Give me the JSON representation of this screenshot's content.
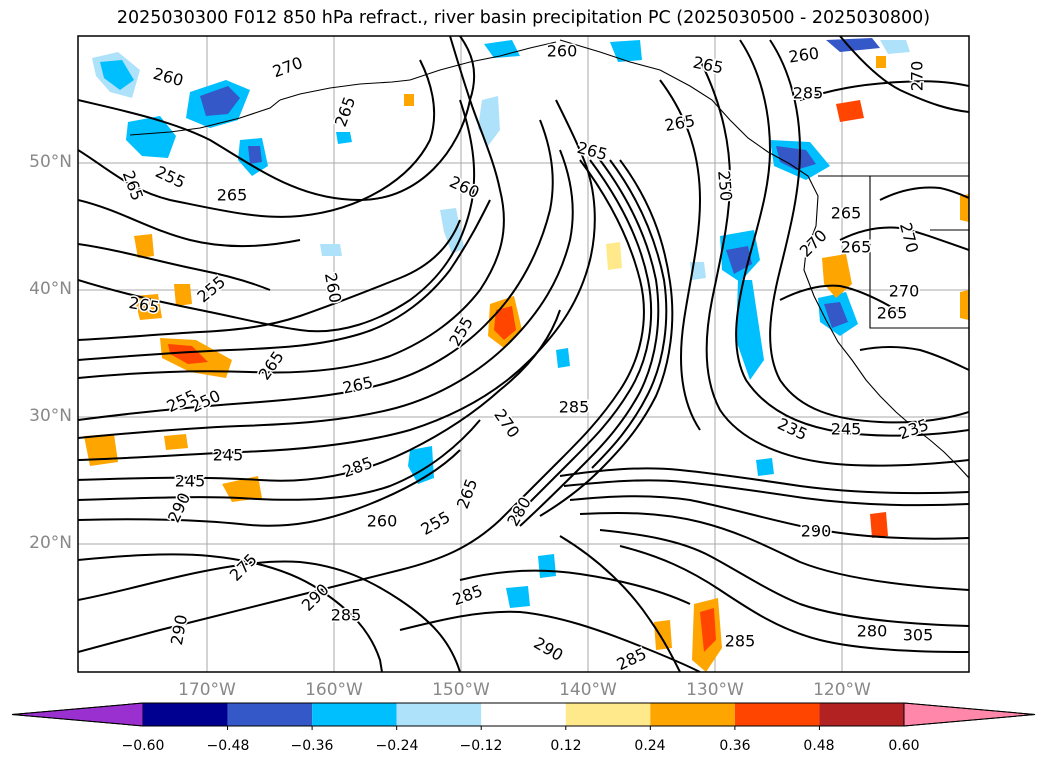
{
  "title": "2025030300 F012 850 hPa refract., river basin precipitation PC (2025030500 - 2025030800)",
  "lat_labels": [
    "50°N",
    "40°N",
    "30°N",
    "20°N"
  ],
  "lon_labels": [
    "170°W",
    "160°W",
    "150°W",
    "140°W",
    "130°W",
    "120°W"
  ],
  "colorbar": {
    "extend": "both",
    "under_color": "#9b30d0",
    "over_color": "#ff88aa",
    "colors": [
      "#9b30d0",
      "#000090",
      "#3558c8",
      "#00bfff",
      "#aee2fa",
      "#ffffff",
      "#ffe98a",
      "#ffa500",
      "#ff4500",
      "#b22222",
      "#ff88aa"
    ],
    "tick_labels": [
      "−0.60",
      "−0.48",
      "−0.36",
      "−0.24",
      "−0.12",
      "0.12",
      "0.24",
      "0.36",
      "0.48",
      "0.60"
    ]
  },
  "contour_labels": [
    {
      "text": "260"
    },
    {
      "text": "270"
    },
    {
      "text": "265"
    },
    {
      "text": "265"
    },
    {
      "text": "260"
    },
    {
      "text": "265"
    },
    {
      "text": "260"
    },
    {
      "text": "255"
    },
    {
      "text": "265"
    },
    {
      "text": "265"
    },
    {
      "text": "260"
    },
    {
      "text": "265"
    },
    {
      "text": "260"
    },
    {
      "text": "255"
    },
    {
      "text": "265"
    },
    {
      "text": "265"
    },
    {
      "text": "255"
    },
    {
      "text": "250"
    },
    {
      "text": "245"
    },
    {
      "text": "245"
    },
    {
      "text": "270"
    },
    {
      "text": "285"
    },
    {
      "text": "285"
    },
    {
      "text": "265"
    },
    {
      "text": "290"
    },
    {
      "text": "260"
    },
    {
      "text": "255"
    },
    {
      "text": "280"
    },
    {
      "text": "285"
    },
    {
      "text": "270"
    },
    {
      "text": "285"
    },
    {
      "text": "275"
    },
    {
      "text": "290"
    },
    {
      "text": "285"
    },
    {
      "text": "290"
    },
    {
      "text": "285"
    },
    {
      "text": "290"
    },
    {
      "text": "290"
    },
    {
      "text": "235"
    },
    {
      "text": "245"
    },
    {
      "text": "235"
    },
    {
      "text": "285"
    },
    {
      "text": "280"
    },
    {
      "text": "305"
    },
    {
      "text": "250"
    },
    {
      "text": "270"
    },
    {
      "text": "265"
    },
    {
      "text": "265"
    },
    {
      "text": "270"
    },
    {
      "text": "270"
    },
    {
      "text": "265"
    },
    {
      "text": "265"
    },
    {
      "text": "255"
    }
  ]
}
